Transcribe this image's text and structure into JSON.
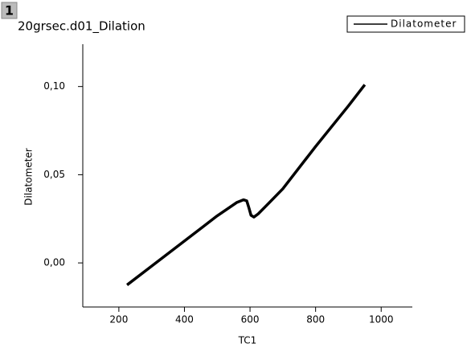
{
  "layer": "1",
  "chart_data": {
    "type": "line",
    "title": "20grsec.d01_Dilation",
    "x_label": "TC1",
    "y_label": "Dilatometer",
    "x": [
      225,
      300,
      400,
      500,
      560,
      580,
      590,
      597,
      603,
      612,
      625,
      650,
      700,
      800,
      900,
      950
    ],
    "series": [
      {
        "name": "Dilatometer",
        "color": "#000000",
        "values": [
          -0.0125,
          -0.0018,
          0.0124,
          0.0267,
          0.0343,
          0.0358,
          0.0352,
          0.031,
          0.027,
          0.026,
          0.0278,
          0.0325,
          0.042,
          0.066,
          0.089,
          0.101
        ]
      }
    ],
    "xlim": [
      90,
      1095
    ],
    "ylim": [
      -0.025,
      0.124
    ],
    "xticks": [
      200,
      400,
      600,
      800,
      1000
    ],
    "yticks": [
      {
        "value": 0.0,
        "label": "0,00"
      },
      {
        "value": 0.05,
        "label": "0,05"
      },
      {
        "value": 0.1,
        "label": "0,10"
      }
    ],
    "legend": "top-right",
    "grid": false
  }
}
